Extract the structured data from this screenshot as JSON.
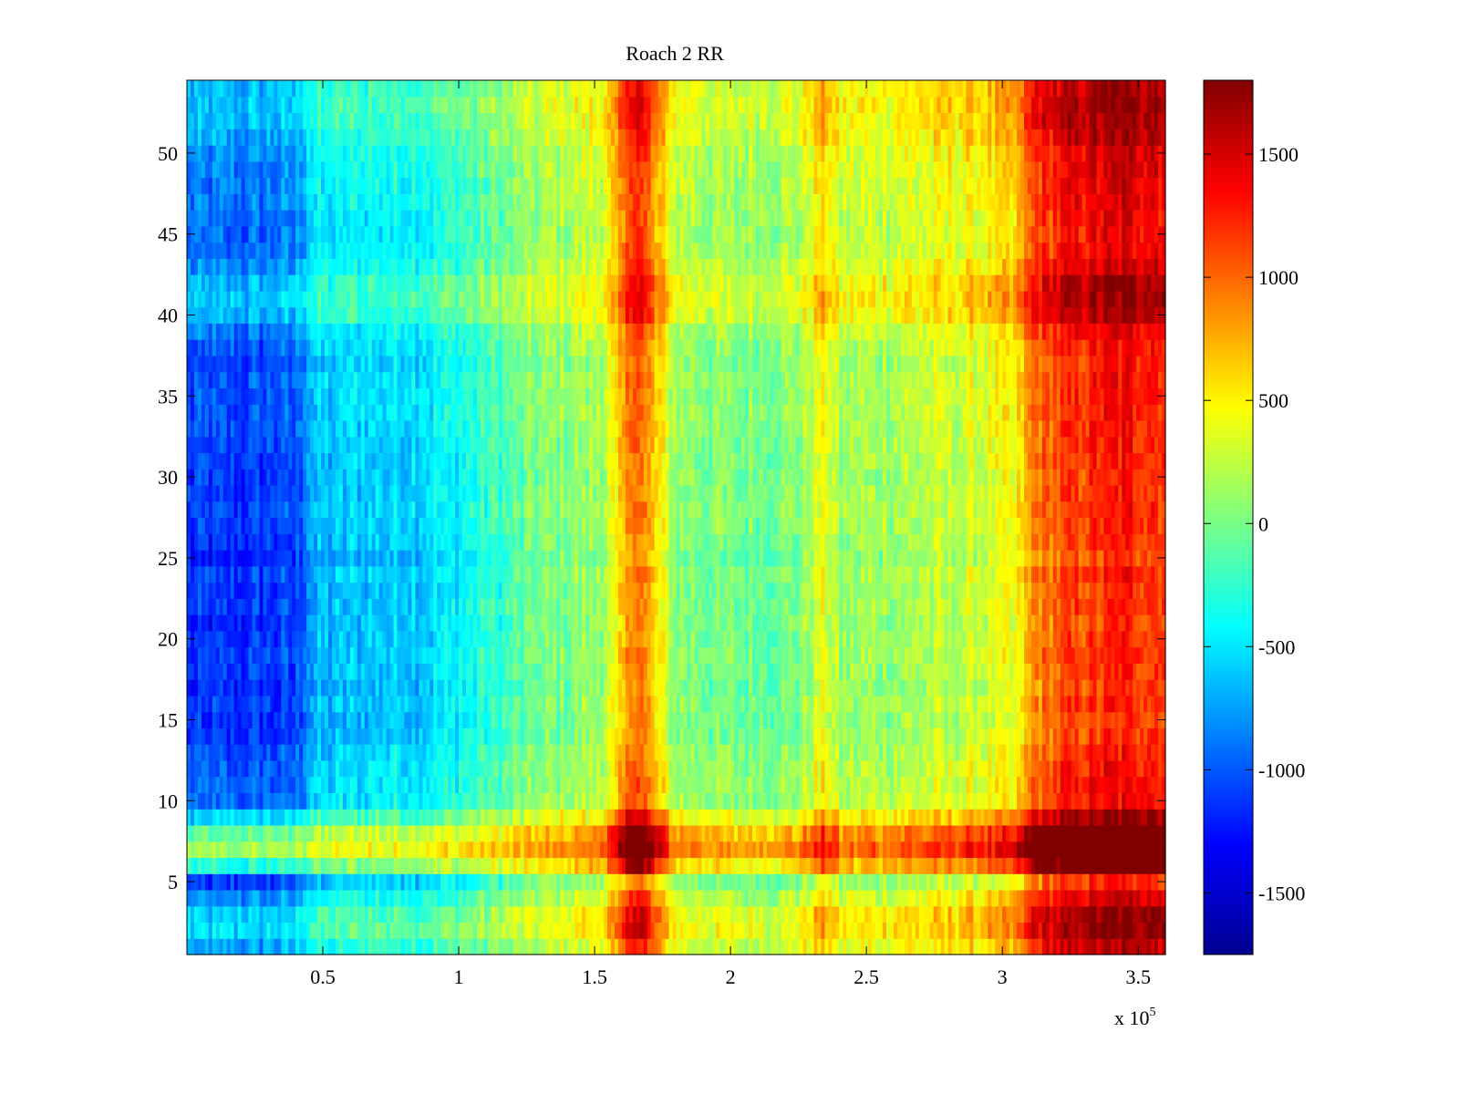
{
  "chart_data": {
    "type": "heatmap",
    "title": "Roach 2 RR",
    "xlabel": "",
    "ylabel": "",
    "x_multiplier_label": "x 10",
    "x_multiplier_exponent": "5",
    "xlim": [
      0,
      360000
    ],
    "ylim": [
      0.5,
      54.5
    ],
    "x_ticks": [
      50000,
      100000,
      150000,
      200000,
      250000,
      300000,
      350000
    ],
    "x_tick_labels": [
      "0.5",
      "1",
      "1.5",
      "2",
      "2.5",
      "3",
      "3.5"
    ],
    "y_ticks": [
      5,
      10,
      15,
      20,
      25,
      30,
      35,
      40,
      45,
      50
    ],
    "y_tick_labels": [
      "5",
      "10",
      "15",
      "20",
      "25",
      "30",
      "35",
      "40",
      "45",
      "50"
    ],
    "rows": 54,
    "colormap": "jet",
    "colorbar": {
      "clim": [
        -1750,
        1800
      ],
      "ticks": [
        -1500,
        -1000,
        -500,
        0,
        500,
        1000,
        1500
      ],
      "tick_labels": [
        "-1500",
        "-1000",
        "-500",
        "0",
        "500",
        "1000",
        "1500"
      ]
    },
    "column_profile": {
      "x": [
        0,
        20000,
        40000,
        45000,
        60000,
        90000,
        100000,
        115000,
        130000,
        150000,
        158000,
        165000,
        172000,
        180000,
        200000,
        225000,
        232000,
        236000,
        240000,
        260000,
        285000,
        305000,
        312000,
        325000,
        345000,
        360000
      ],
      "value": [
        -1000,
        -1000,
        -950,
        -600,
        -500,
        -420,
        -300,
        -120,
        80,
        200,
        500,
        1250,
        700,
        180,
        60,
        120,
        420,
        480,
        200,
        250,
        350,
        500,
        1050,
        1250,
        1400,
        1350
      ]
    },
    "row_offsets": [
      {
        "row": 1,
        "offset": 150
      },
      {
        "row": 2,
        "offset": 280
      },
      {
        "row": 3,
        "offset": 250
      },
      {
        "row": 4,
        "offset": 100
      },
      {
        "row": 5,
        "offset": -80
      },
      {
        "row": 6,
        "offset": 420
      },
      {
        "row": 7,
        "offset": 700
      },
      {
        "row": 8,
        "offset": 560
      },
      {
        "row": 9,
        "offset": 250
      },
      {
        "row": 10,
        "offset": 0
      },
      {
        "row": 11,
        "offset": 0
      },
      {
        "row": 12,
        "offset": -20
      },
      {
        "row": 13,
        "offset": -50
      },
      {
        "row": 14,
        "offset": -100
      },
      {
        "row": 15,
        "offset": -120
      },
      {
        "row": 16,
        "offset": -80
      },
      {
        "row": 17,
        "offset": -130
      },
      {
        "row": 18,
        "offset": -100
      },
      {
        "row": 19,
        "offset": -80
      },
      {
        "row": 20,
        "offset": -100
      },
      {
        "row": 21,
        "offset": -120
      },
      {
        "row": 22,
        "offset": -90
      },
      {
        "row": 23,
        "offset": -110
      },
      {
        "row": 24,
        "offset": -60
      },
      {
        "row": 25,
        "offset": -140
      },
      {
        "row": 26,
        "offset": -100
      },
      {
        "row": 27,
        "offset": -80
      },
      {
        "row": 28,
        "offset": -60
      },
      {
        "row": 29,
        "offset": -80
      },
      {
        "row": 30,
        "offset": -90
      },
      {
        "row": 31,
        "offset": -70
      },
      {
        "row": 32,
        "offset": -60
      },
      {
        "row": 33,
        "offset": -40
      },
      {
        "row": 34,
        "offset": -30
      },
      {
        "row": 35,
        "offset": -40
      },
      {
        "row": 36,
        "offset": -20
      },
      {
        "row": 37,
        "offset": -60
      },
      {
        "row": 38,
        "offset": -20
      },
      {
        "row": 39,
        "offset": 40
      },
      {
        "row": 40,
        "offset": 180
      },
      {
        "row": 41,
        "offset": 230
      },
      {
        "row": 42,
        "offset": 200
      },
      {
        "row": 43,
        "offset": 100
      },
      {
        "row": 44,
        "offset": 40
      },
      {
        "row": 45,
        "offset": 20
      },
      {
        "row": 46,
        "offset": 30
      },
      {
        "row": 47,
        "offset": 60
      },
      {
        "row": 48,
        "offset": 60
      },
      {
        "row": 49,
        "offset": 80
      },
      {
        "row": 50,
        "offset": 100
      },
      {
        "row": 51,
        "offset": 160
      },
      {
        "row": 52,
        "offset": 210
      },
      {
        "row": 53,
        "offset": 230
      },
      {
        "row": 54,
        "offset": 200
      }
    ]
  }
}
